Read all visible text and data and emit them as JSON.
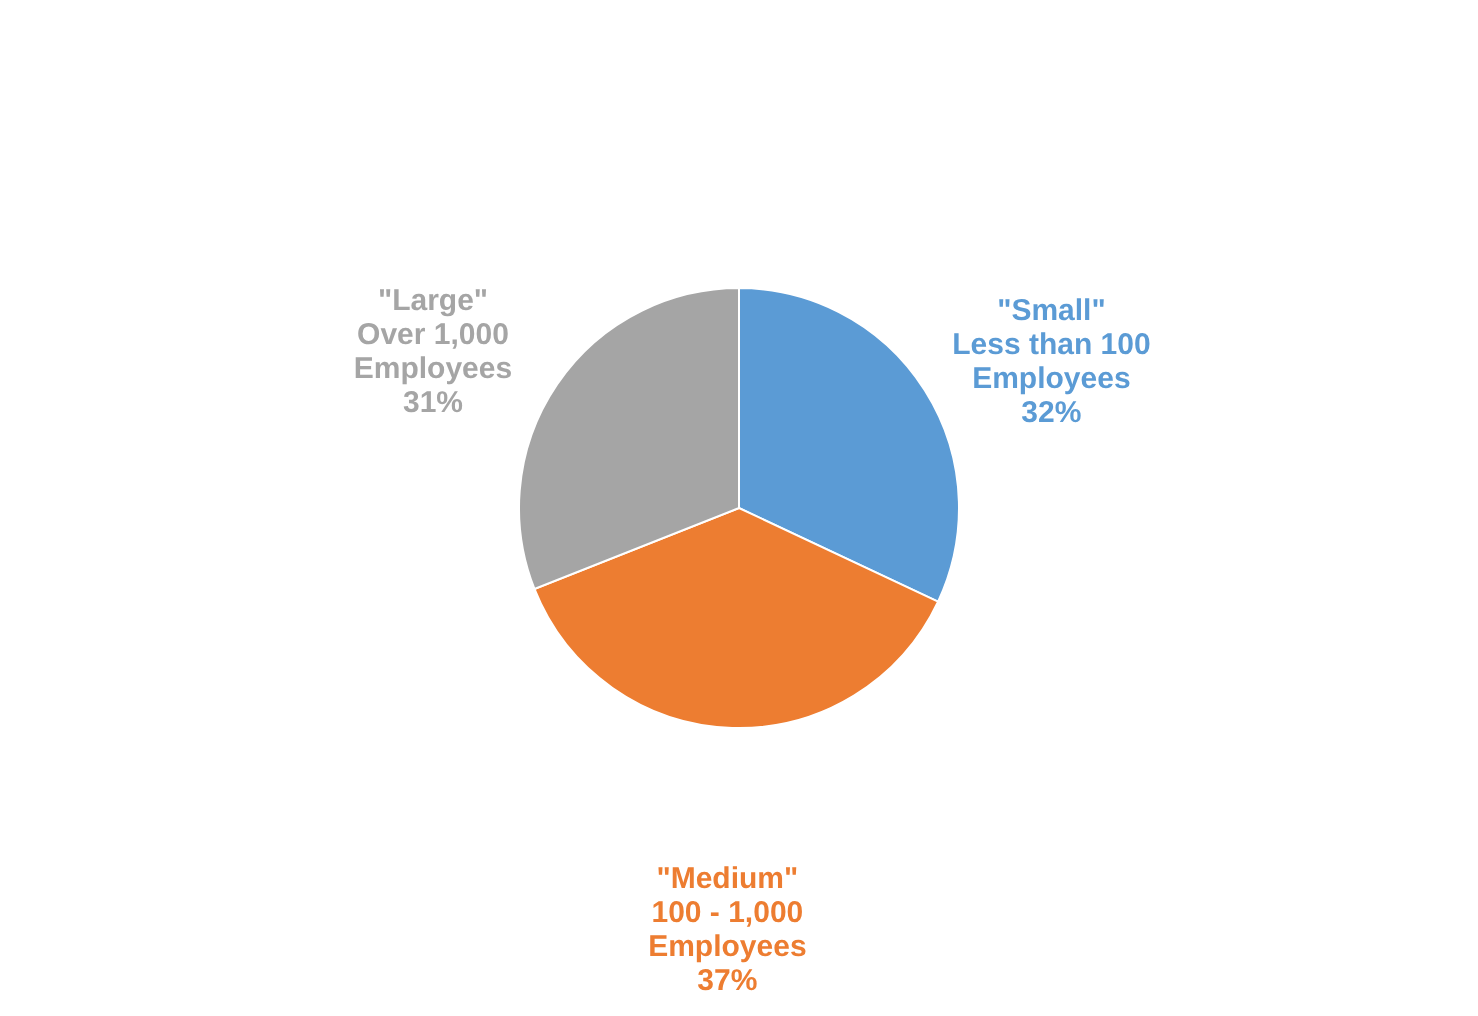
{
  "chart_data": {
    "type": "pie",
    "categories": [
      "\"Small\"\nLess than 100\nEmployees",
      "\"Medium\"\n100 - 1,000\nEmployees",
      "\"Large\"\nOver 1,000\nEmployees"
    ],
    "values": [
      32,
      37,
      31
    ],
    "value_labels": [
      "32%",
      "37%",
      "31%"
    ],
    "colors": [
      "#5b9bd5",
      "#ed7d31",
      "#a5a5a5"
    ],
    "legend": false
  }
}
